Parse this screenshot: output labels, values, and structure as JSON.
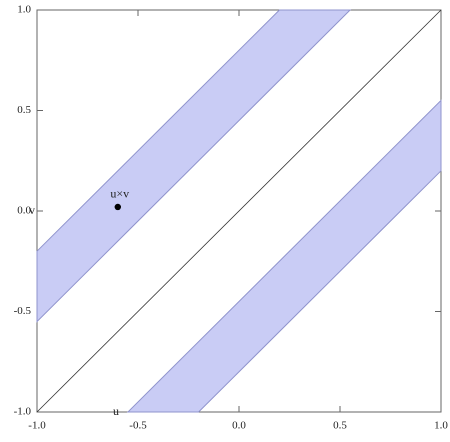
{
  "chart_data": {
    "type": "region",
    "regions": [
      {
        "color": "#c9ccf5",
        "edge": "#8f93cc",
        "x": [
          -1,
          -1,
          0.2,
          0.55
        ],
        "y": [
          -0.55,
          -0.2,
          1,
          1
        ]
      },
      {
        "color": "#c9ccf5",
        "edge": "#8f93cc",
        "x": [
          -0.55,
          -0.2,
          1,
          1
        ],
        "y": [
          -1,
          -1,
          0.2,
          0.55
        ]
      }
    ],
    "lines": [
      {
        "color": "#333333",
        "x": [
          -1,
          1
        ],
        "y": [
          -1,
          1
        ]
      }
    ],
    "points": [
      {
        "x": -0.6,
        "y": 0.02,
        "label": "u×v",
        "color": "#000000"
      }
    ],
    "annotations": [
      "v",
      "u"
    ],
    "xlim": [
      -1,
      1
    ],
    "ylim": [
      -1,
      1
    ],
    "xticks": [
      {
        "value": -1,
        "label": "-1.0"
      },
      {
        "value": -0.5,
        "label": "-0.5"
      },
      {
        "value": 0,
        "label": "0.0"
      },
      0.5,
      {
        "value": 1,
        "label": "1.0"
      }
    ],
    "yticks": [
      {
        "value": -1,
        "label": "-1.0"
      },
      {
        "value": -0.5,
        "label": "-0.5"
      },
      {
        "value": 0,
        "label": "0.0"
      },
      0.5,
      {
        "value": 1,
        "label": "1.0"
      }
    ]
  }
}
